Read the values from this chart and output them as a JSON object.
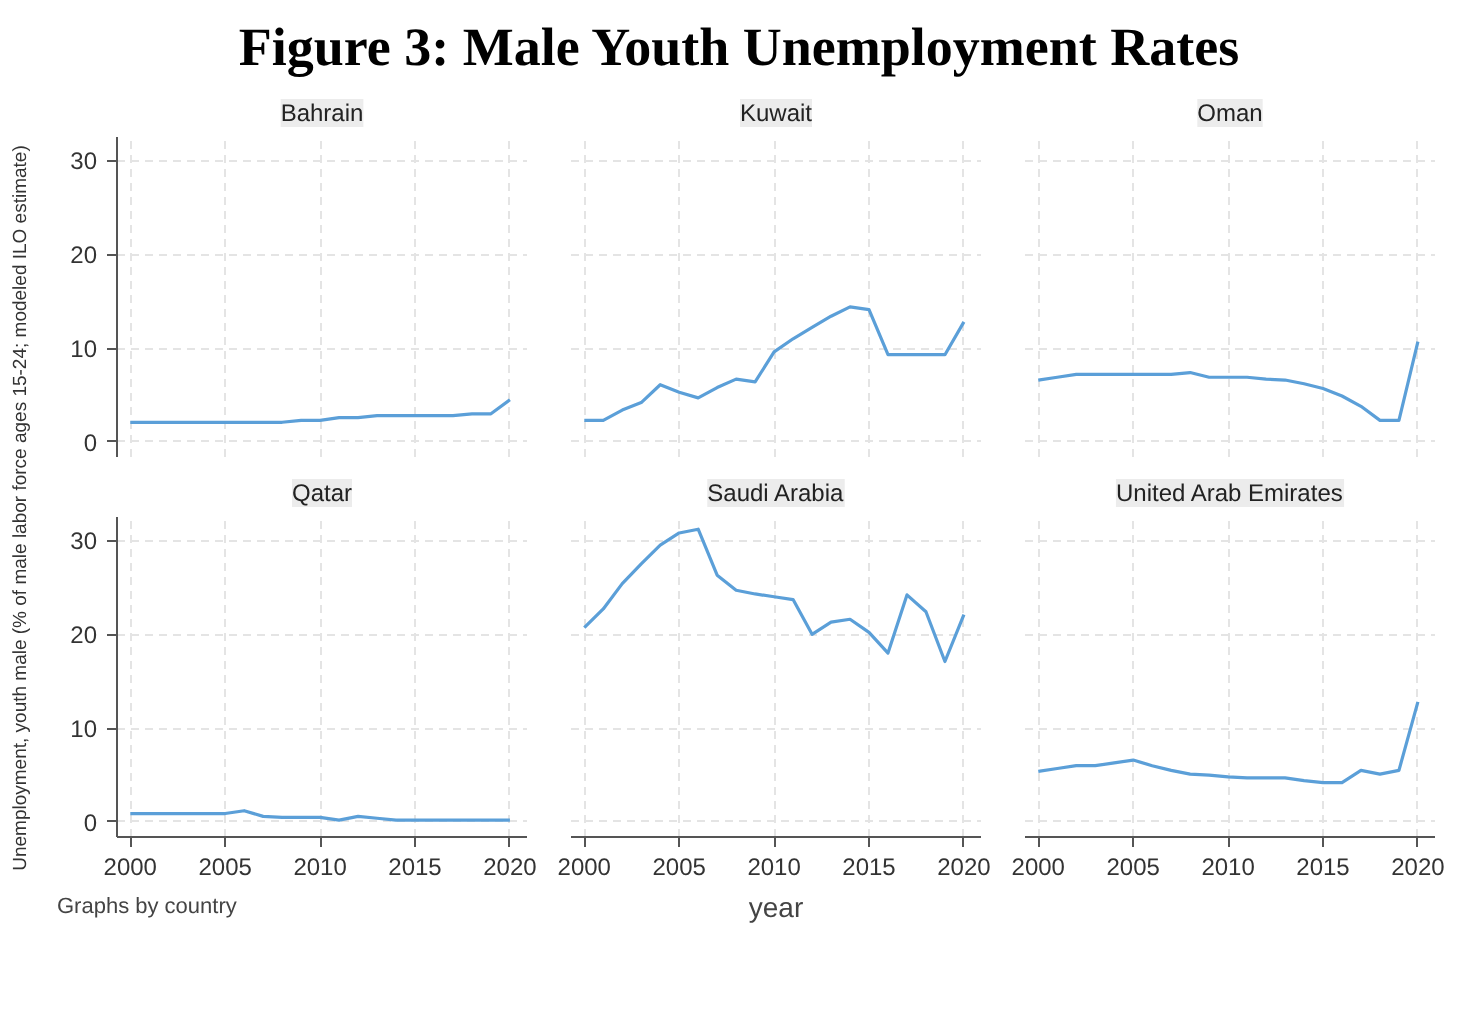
{
  "chart_data": [
    {
      "type": "line",
      "title": "Bahrain",
      "annotations": [
        "Figure 3: Male Youth Unemployment Rates"
      ],
      "ylabel": "Unemployment, youth male (% of male labor force ages 15-24; modeled ILO estimate)",
      "color": "#5b9fd8",
      "x": [
        2000,
        2001,
        2002,
        2003,
        2004,
        2005,
        2006,
        2007,
        2008,
        2009,
        2010,
        2011,
        2012,
        2013,
        2014,
        2015,
        2016,
        2017,
        2018,
        2019,
        2020
      ],
      "values": [
        2.1,
        2.1,
        2.1,
        2.1,
        2.1,
        2.1,
        2.1,
        2.1,
        2.1,
        2.3,
        2.3,
        2.6,
        2.6,
        2.8,
        2.8,
        2.8,
        2.8,
        2.8,
        3.0,
        3.0,
        4.5
      ],
      "xlim": [
        1999.3,
        2020.9
      ],
      "ylim": [
        -1.6,
        32.5
      ],
      "xticks": [
        2000,
        2005,
        2010,
        2015,
        2020
      ],
      "yticks": [
        0,
        10,
        20,
        30
      ],
      "grid": true,
      "tick_labels": "y"
    },
    {
      "type": "line",
      "title": "Kuwait",
      "color": "#5b9fd8",
      "x": [
        2000,
        2001,
        2002,
        2003,
        2004,
        2005,
        2006,
        2007,
        2008,
        2009,
        2010,
        2011,
        2012,
        2013,
        2014,
        2015,
        2016,
        2017,
        2018,
        2019,
        2020
      ],
      "values": [
        2.3,
        2.3,
        3.4,
        4.2,
        6.1,
        5.3,
        4.7,
        5.8,
        6.7,
        6.4,
        9.6,
        11.0,
        12.2,
        13.4,
        14.4,
        14.1,
        9.3,
        9.3,
        9.3,
        9.3,
        12.8
      ],
      "xlim": [
        1999.3,
        2020.9
      ],
      "ylim": [
        -1.6,
        32.5
      ],
      "xticks": [
        2000,
        2005,
        2010,
        2015,
        2020
      ],
      "yticks": [
        0,
        10,
        20,
        30
      ],
      "grid": true,
      "tick_labels": false
    },
    {
      "type": "line",
      "title": "Oman",
      "color": "#5b9fd8",
      "x": [
        2000,
        2001,
        2002,
        2003,
        2004,
        2005,
        2006,
        2007,
        2008,
        2009,
        2010,
        2011,
        2012,
        2013,
        2014,
        2015,
        2016,
        2017,
        2018,
        2019,
        2020
      ],
      "values": [
        6.6,
        6.9,
        7.2,
        7.2,
        7.2,
        7.2,
        7.2,
        7.2,
        7.4,
        6.9,
        6.9,
        6.9,
        6.7,
        6.6,
        6.2,
        5.7,
        4.9,
        3.8,
        2.3,
        2.3,
        10.7
      ],
      "xlim": [
        1999.3,
        2020.9
      ],
      "ylim": [
        -1.6,
        32.5
      ],
      "xticks": [
        2000,
        2005,
        2010,
        2015,
        2020
      ],
      "yticks": [
        0,
        10,
        20,
        30
      ],
      "grid": true,
      "tick_labels": false
    },
    {
      "type": "line",
      "title": "Qatar",
      "annotations": [
        "Graphs by country"
      ],
      "color": "#5b9fd8",
      "x": [
        2000,
        2001,
        2002,
        2003,
        2004,
        2005,
        2006,
        2007,
        2008,
        2009,
        2010,
        2011,
        2012,
        2013,
        2014,
        2015,
        2016,
        2017,
        2018,
        2019,
        2020
      ],
      "values": [
        0.9,
        0.9,
        0.9,
        0.9,
        0.9,
        0.9,
        1.2,
        0.6,
        0.5,
        0.5,
        0.5,
        0.2,
        0.6,
        0.4,
        0.2,
        0.2,
        0.2,
        0.2,
        0.2,
        0.2,
        0.2
      ],
      "xlim": [
        1999.3,
        2020.9
      ],
      "ylim": [
        -1.6,
        32.5
      ],
      "xticks": [
        2000,
        2005,
        2010,
        2015,
        2020
      ],
      "yticks": [
        0,
        10,
        20,
        30
      ],
      "grid": true
    },
    {
      "type": "line",
      "title": "Saudi Arabia",
      "xlabel": "year",
      "color": "#5b9fd8",
      "x": [
        2000,
        2001,
        2002,
        2003,
        2004,
        2005,
        2006,
        2007,
        2008,
        2009,
        2010,
        2011,
        2012,
        2013,
        2014,
        2015,
        2016,
        2017,
        2018,
        2019,
        2020
      ],
      "values": [
        20.7,
        22.7,
        25.4,
        27.5,
        29.5,
        30.8,
        31.2,
        26.3,
        24.7,
        24.3,
        24.0,
        23.7,
        20.0,
        21.3,
        21.6,
        20.2,
        18.0,
        24.2,
        22.4,
        17.1,
        22.1
      ],
      "xlim": [
        1999.3,
        2020.9
      ],
      "ylim": [
        -1.6,
        32.5
      ],
      "xticks": [
        2000,
        2005,
        2010,
        2015,
        2020
      ],
      "yticks": [
        0,
        10,
        20,
        30
      ],
      "grid": true,
      "tick_labels": "x"
    },
    {
      "type": "line",
      "title": "United Arab Emirates",
      "color": "#5b9fd8",
      "x": [
        2000,
        2001,
        2002,
        2003,
        2004,
        2005,
        2006,
        2007,
        2008,
        2009,
        2010,
        2011,
        2012,
        2013,
        2014,
        2015,
        2016,
        2017,
        2018,
        2019,
        2020
      ],
      "values": [
        5.4,
        5.7,
        6.0,
        6.0,
        6.3,
        6.6,
        6.0,
        5.5,
        5.1,
        5.0,
        4.8,
        4.7,
        4.7,
        4.7,
        4.4,
        4.2,
        4.2,
        5.5,
        5.1,
        5.5,
        12.8
      ],
      "xlim": [
        1999.3,
        2020.9
      ],
      "ylim": [
        -1.6,
        32.5
      ],
      "xticks": [
        2000,
        2005,
        2010,
        2015,
        2020
      ],
      "yticks": [
        0,
        10,
        20,
        30
      ],
      "grid": true,
      "tick_labels": "x"
    }
  ]
}
